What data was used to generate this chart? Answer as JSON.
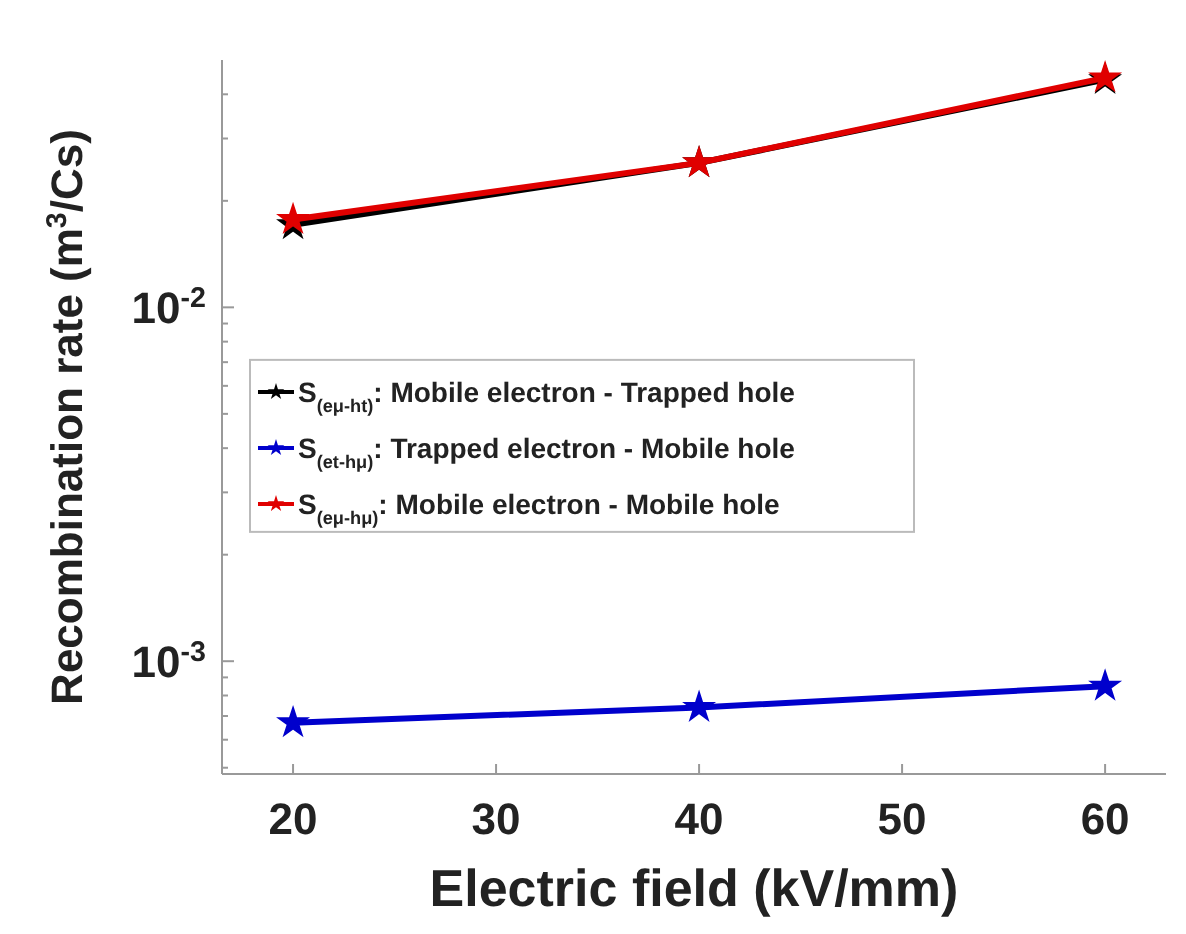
{
  "chart_data": {
    "type": "line",
    "xlabel": "Electric field (kV/mm)",
    "ylabel": "Recombination rate (m$^{3}$/Cs)",
    "x": [
      20,
      40,
      60
    ],
    "series": [
      {
        "name": "S$_{(eμ-ht)}$: Mobile electron - Trapped hole",
        "color": "#000000",
        "values": [
          0.0171,
          0.0256,
          0.044
        ]
      },
      {
        "name": "S$_{(et-hμ)}$: Trapped electron - Mobile hole",
        "color": "#0000cc",
        "values": [
          0.00067,
          0.00074,
          0.00085
        ]
      },
      {
        "name": "S$_{(eμ-hμ)}$: Mobile electron - Mobile hole",
        "color": "#e00000",
        "values": [
          0.0177,
          0.0256,
          0.0445
        ]
      }
    ],
    "xlim": [
      16.5,
      63
    ],
    "xticks": [
      20,
      30,
      40,
      50,
      60
    ],
    "ylim": [
      0.00048,
      0.05
    ],
    "log": true,
    "yticks": [
      {
        "value": 0.0005,
        "label": null
      },
      {
        "value": 0.0006,
        "label": null
      },
      {
        "value": 0.0007,
        "label": null
      },
      {
        "value": 0.0008,
        "label": null
      },
      {
        "value": 0.0009,
        "label": null
      },
      {
        "value": 0.001,
        "label": "10$^{-3}$"
      },
      {
        "value": 0.002,
        "label": null
      },
      {
        "value": 0.003,
        "label": null
      },
      {
        "value": 0.004,
        "label": null
      },
      {
        "value": 0.005,
        "label": null
      },
      {
        "value": 0.006,
        "label": null
      },
      {
        "value": 0.007,
        "label": null
      },
      {
        "value": 0.008,
        "label": null
      },
      {
        "value": 0.009,
        "label": null
      },
      {
        "value": 0.01,
        "label": "10$^{-2}$"
      },
      {
        "value": 0.02,
        "label": null
      },
      {
        "value": 0.03,
        "label": null
      },
      {
        "value": 0.04,
        "label": null
      }
    ],
    "marker": "star",
    "line_style": "solid",
    "legend": "left",
    "grid": false
  }
}
